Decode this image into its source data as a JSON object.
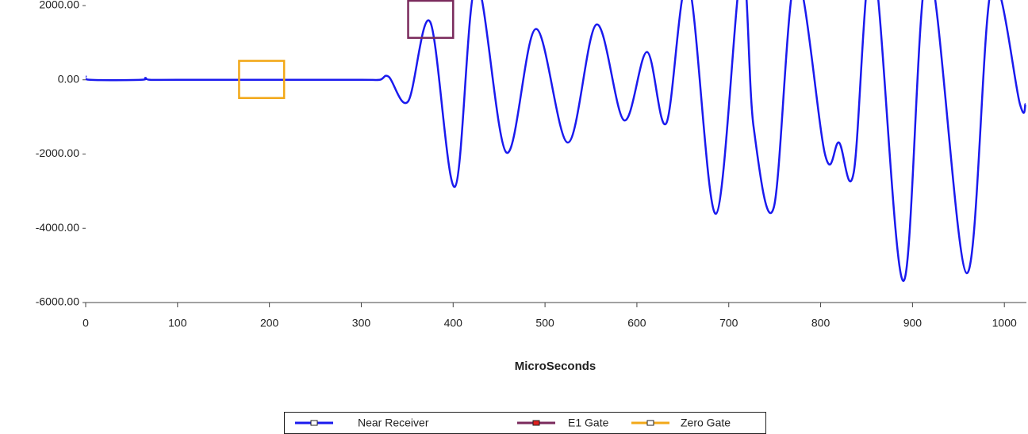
{
  "chart_data": {
    "type": "line",
    "xlabel": "MicroSeconds",
    "xlim": [
      0,
      1024
    ],
    "ylim": [
      -6000,
      2150
    ],
    "xticks": [
      0,
      100,
      200,
      300,
      400,
      500,
      600,
      700,
      800,
      900,
      1000
    ],
    "yticks": [
      {
        "value": -6000,
        "label": "-6000.00"
      },
      {
        "value": -4000,
        "label": "-4000.00"
      },
      {
        "value": -2000,
        "label": "-2000.00"
      },
      {
        "value": 0,
        "label": "0.00"
      },
      {
        "value": 2000,
        "label": "2000.00"
      }
    ],
    "series": [
      {
        "name": "Near Receiver",
        "color": "#1a1aee",
        "marker_color": "#ffffff",
        "x": [
          0,
          5,
          60,
          65,
          70,
          100,
          200,
          300,
          320,
          330,
          351,
          375,
          402,
          425,
          458,
          490,
          525,
          556,
          586,
          611,
          632,
          656,
          686,
          714,
          727,
          749,
          773,
          805,
          820,
          836,
          857,
          890,
          917,
          959,
          986,
          1017,
          1023
        ],
        "values": [
          100,
          0,
          0,
          50,
          0,
          0,
          0,
          0,
          0,
          80,
          -580,
          1560,
          -2880,
          2600,
          -1960,
          1370,
          -1690,
          1490,
          -1090,
          750,
          -1170,
          2600,
          -3610,
          3000,
          -1260,
          -3440,
          2800,
          -2030,
          -1690,
          -2500,
          3200,
          -5420,
          3000,
          -5210,
          2500,
          -660,
          -650
        ]
      },
      {
        "name": "E1 Gate",
        "color": "#7a2a5c",
        "marker_color": "#e02020",
        "x": [
          351,
          400
        ],
        "values": [
          1130,
          2130
        ]
      },
      {
        "name": "Zero Gate",
        "color": "#f2a818",
        "marker_color": "#ffffff",
        "x": [
          167,
          216
        ],
        "values": [
          -490,
          510
        ]
      }
    ]
  }
}
